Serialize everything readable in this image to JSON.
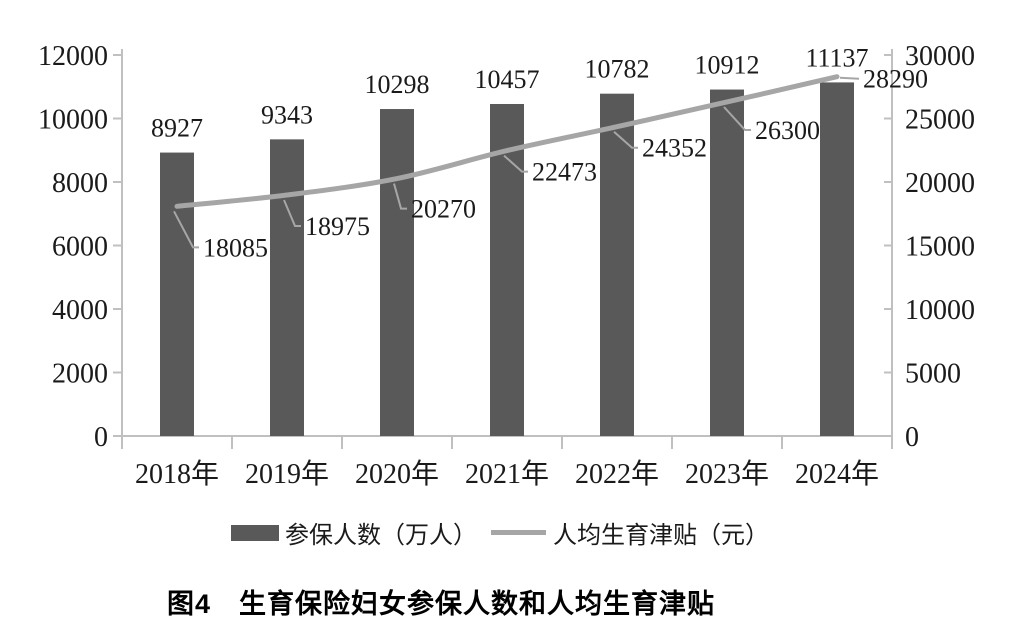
{
  "chart_data": {
    "type": "bar+line combo",
    "title": "图4　生育保险妇女参保人数和人均生育津贴",
    "categories": [
      "2018年",
      "2019年",
      "2020年",
      "2021年",
      "2022年",
      "2023年",
      "2024年"
    ],
    "series": [
      {
        "name": "参保人数（万人）",
        "type": "bar",
        "axis": "left",
        "color": "#595959",
        "values": [
          8927,
          9343,
          10298,
          10457,
          10782,
          10912,
          11137
        ]
      },
      {
        "name": "人均生育津贴（元）",
        "type": "line",
        "axis": "right",
        "color": "#a6a6a6",
        "values": [
          18085,
          18975,
          20270,
          22473,
          24352,
          26300,
          28290
        ]
      }
    ],
    "left_axis": {
      "min": 0,
      "max": 12000,
      "step": 2000,
      "ticks": [
        "0",
        "2000",
        "4000",
        "6000",
        "8000",
        "10000",
        "12000"
      ]
    },
    "right_axis": {
      "min": 0,
      "max": 30000,
      "step": 5000,
      "ticks": [
        "0",
        "5000",
        "10000",
        "15000",
        "20000",
        "25000",
        "30000"
      ]
    },
    "legend_position": "bottom",
    "grid": false,
    "data_labels": true
  },
  "colors": {
    "bar": "#595959",
    "line": "#a6a6a6",
    "axis": "#c0c0c0",
    "text": "#1a1a1a"
  }
}
